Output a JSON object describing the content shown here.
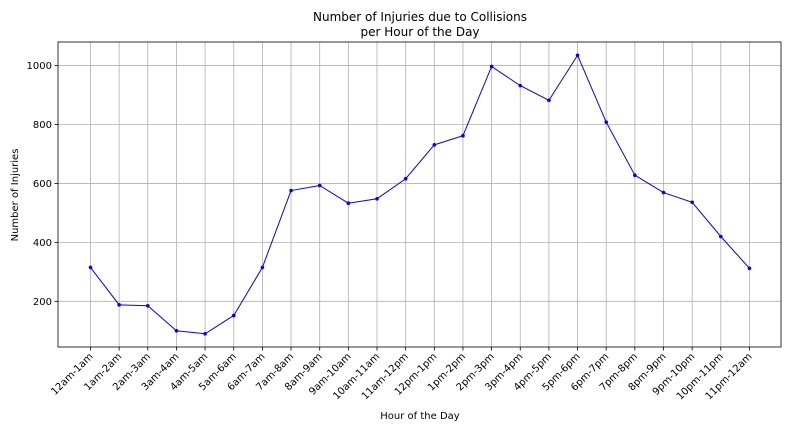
{
  "chart_data": {
    "type": "line",
    "title_line1": "Number of Injuries due to Collisions",
    "title_line2": "per Hour of the Day",
    "xlabel": "Hour of the Day",
    "ylabel": "Number of Injuries",
    "ylim": [
      45,
      1080
    ],
    "yticks": [
      200,
      400,
      600,
      800,
      1000
    ],
    "grid": true,
    "categories": [
      "12am-1am",
      "1am-2am",
      "2am-3am",
      "3am-4am",
      "4am-5am",
      "5am-6am",
      "6am-7am",
      "7am-8am",
      "8am-9am",
      "9am-10am",
      "10am-11am",
      "11am-12pm",
      "12pm-1pm",
      "1pm-2pm",
      "2pm-3pm",
      "3pm-4pm",
      "4pm-5pm",
      "5pm-6pm",
      "6pm-7pm",
      "7pm-8pm",
      "8pm-9pm",
      "9pm-10pm",
      "10pm-11pm",
      "11pm-12am"
    ],
    "series": [
      {
        "color": "#0000ff",
        "values": [
          315,
          188,
          185,
          100,
          90,
          152,
          315,
          576,
          593,
          533,
          548,
          616,
          731,
          762,
          997,
          932,
          882,
          1035,
          808,
          628,
          569,
          536,
          420,
          312
        ]
      }
    ]
  }
}
